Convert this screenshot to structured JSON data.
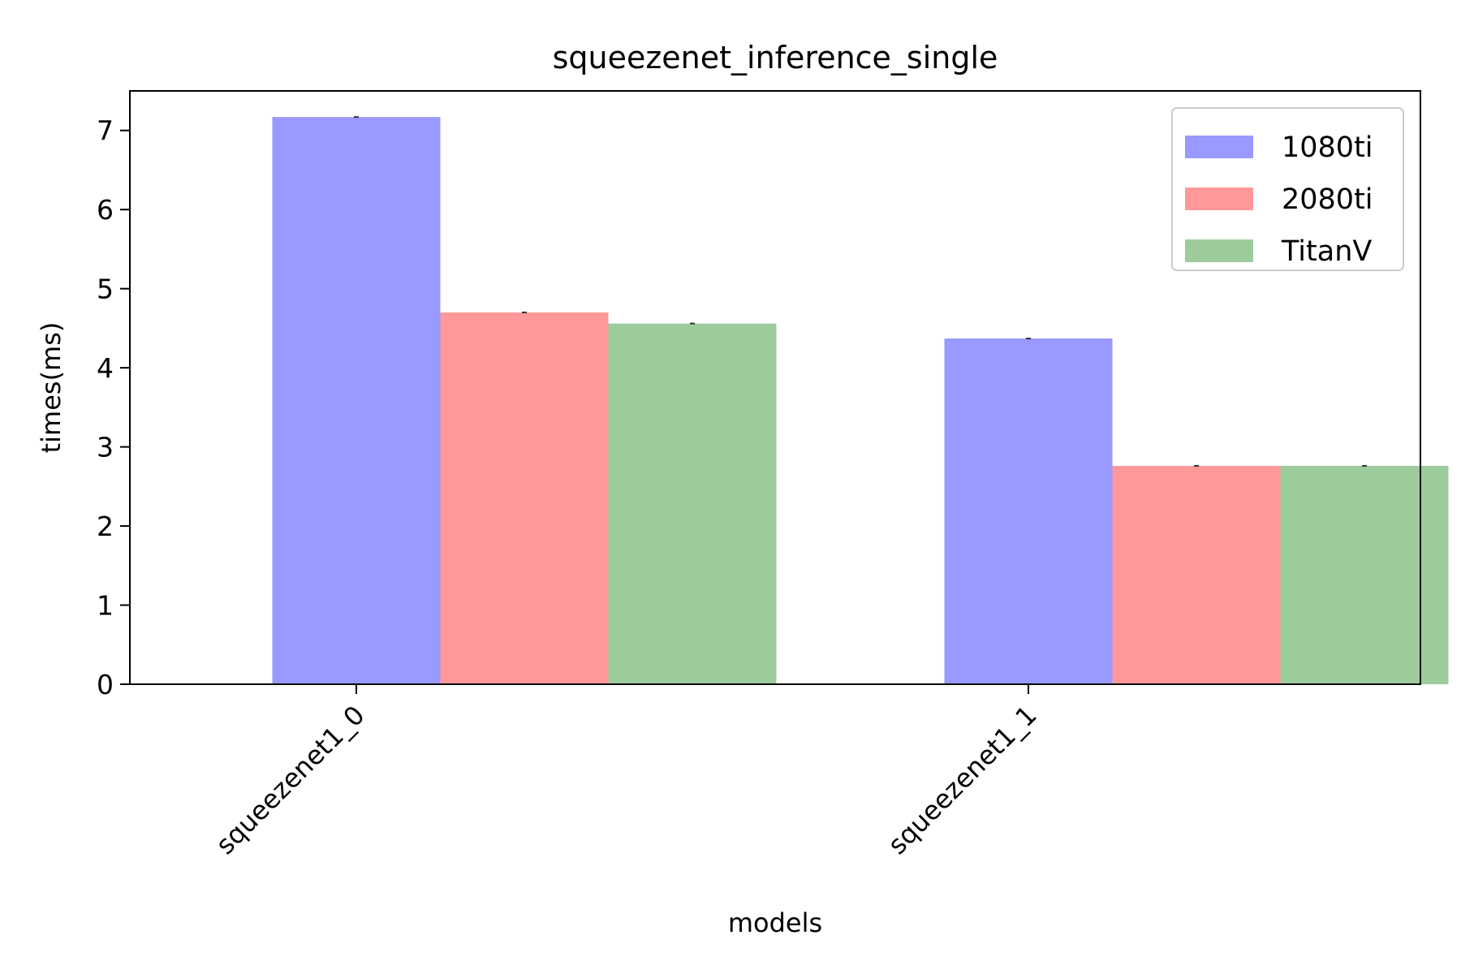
{
  "chart_data": {
    "type": "bar",
    "title": "squeezenet_inference_single",
    "xlabel": "models",
    "ylabel": "times(ms)",
    "categories": [
      "squeezenet1_0",
      "squeezenet1_1"
    ],
    "series": [
      {
        "name": "1080ti",
        "values": [
          7.17,
          4.37
        ],
        "color": "#9999ff"
      },
      {
        "name": "2080ti",
        "values": [
          4.7,
          2.76
        ],
        "color": "#ff9999"
      },
      {
        "name": "TitanV",
        "values": [
          4.56,
          2.76
        ],
        "color": "#9ccc9c"
      }
    ],
    "ylim": [
      0,
      7.5
    ],
    "yticks": [
      0,
      1,
      2,
      3,
      4,
      5,
      6,
      7
    ],
    "grid": false,
    "legend_position": "top-right"
  }
}
